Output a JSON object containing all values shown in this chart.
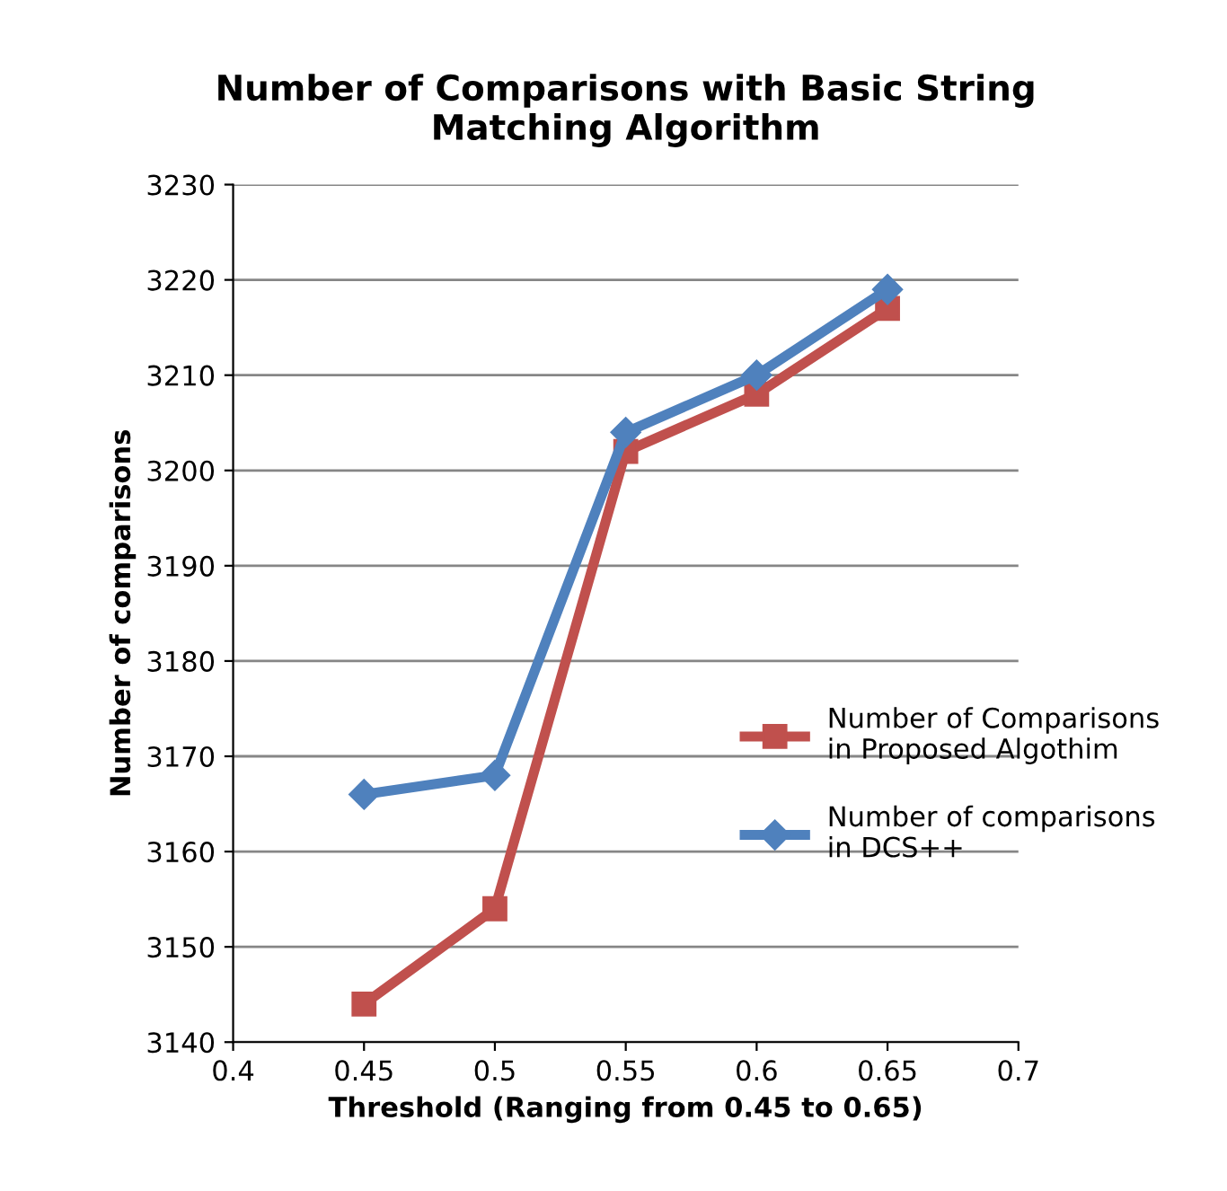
{
  "chart_data": {
    "type": "line",
    "title": "Number of Comparisons with Basic String\nMatching Algorithm",
    "xlabel": "Threshold (Ranging from 0.45 to 0.65)",
    "ylabel": "Number of comparisons",
    "x": [
      0.45,
      0.5,
      0.55,
      0.6,
      0.65
    ],
    "series": [
      {
        "name": "Number of Comparisons\nin Proposed Algothim",
        "color": "#c0504d",
        "marker": "square",
        "values": [
          3144,
          3154,
          3202,
          3208,
          3217
        ]
      },
      {
        "name": "Number of comparisons\nin DCS++",
        "color": "#4f81bd",
        "marker": "diamond",
        "values": [
          3166,
          3168,
          3204,
          3210,
          3219
        ]
      }
    ],
    "xlim": [
      0.4,
      0.7
    ],
    "xticks": [
      0.4,
      0.45,
      0.5,
      0.55,
      0.6,
      0.65,
      0.7
    ],
    "ylim": [
      3140,
      3230
    ],
    "yticks": [
      3140,
      3150,
      3160,
      3170,
      3180,
      3190,
      3200,
      3210,
      3220,
      3230
    ],
    "grid": "y",
    "legend": "right",
    "line_style": "solid"
  }
}
